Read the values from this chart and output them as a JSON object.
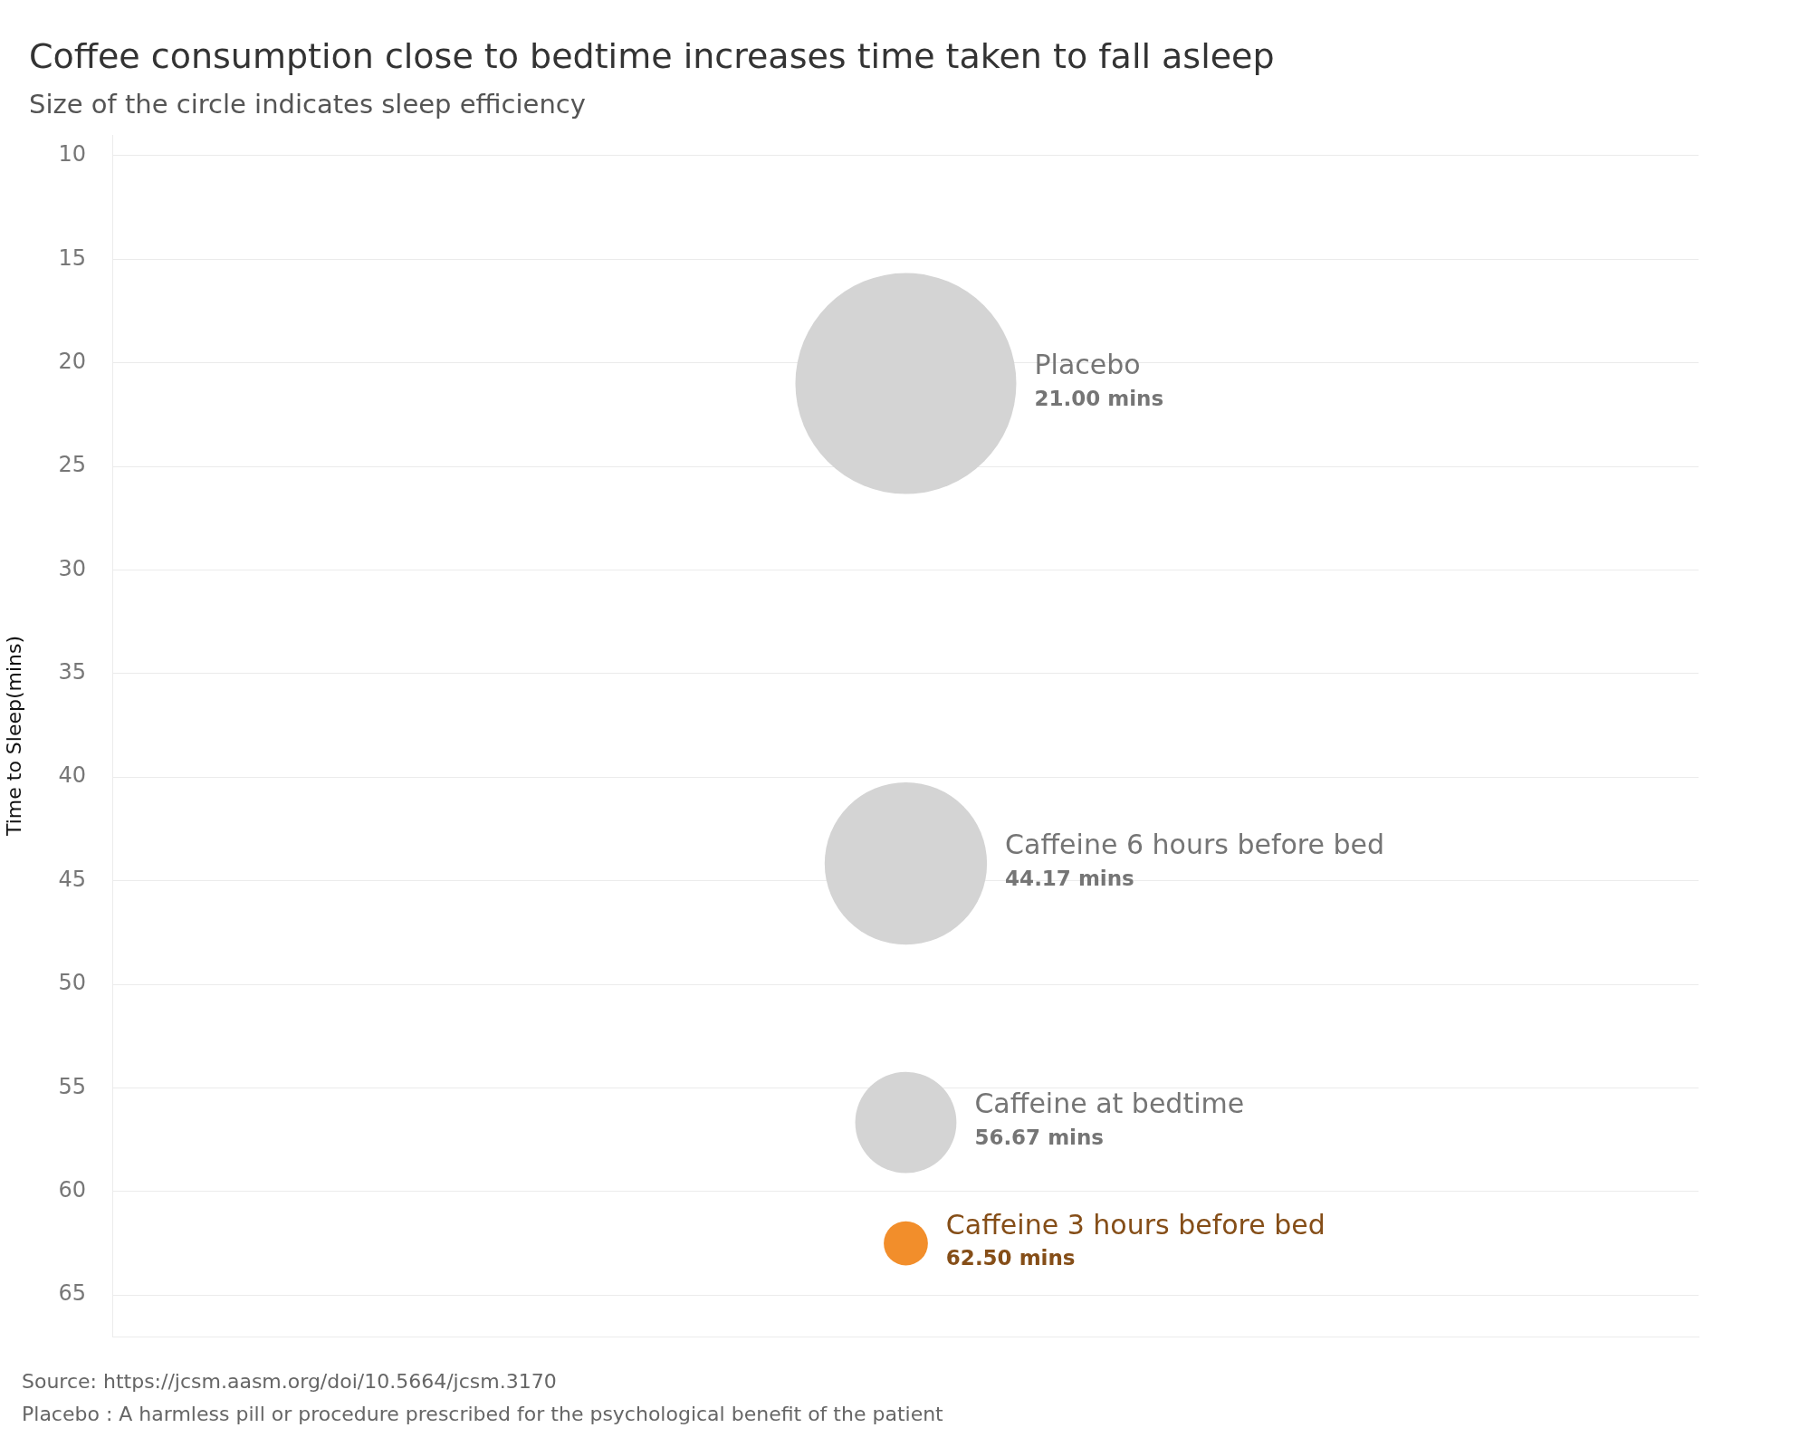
{
  "chart_data": {
    "type": "bubble",
    "title": "Coffee consumption close to bedtime increases time taken to fall asleep",
    "subtitle": "Size of the circle indicates sleep efficiency",
    "ylabel": "Time to Sleep(mins)",
    "categories": [
      null
    ],
    "series": [
      {
        "name": "Placebo",
        "color": "#d4d4d4",
        "values": [
          21.0
        ],
        "sizes": [
          1
        ],
        "value_labels": [
          "21.00 mins"
        ]
      },
      {
        "name": "Caffeine 6 hours before bed",
        "color": "#d4d4d4",
        "values": [
          44.17
        ],
        "sizes": [
          0.54
        ],
        "value_labels": [
          "44.17 mins"
        ]
      },
      {
        "name": "Caffeine at bedtime",
        "color": "#d4d4d4",
        "values": [
          56.67
        ],
        "sizes": [
          0.21
        ],
        "value_labels": [
          "56.67 mins"
        ]
      },
      {
        "name": "Caffeine 3 hours before bed",
        "color": "#f28e2b",
        "values": [
          62.5
        ],
        "sizes": [
          0.04
        ],
        "value_labels": [
          "62.50 mins"
        ]
      }
    ],
    "ylim": [
      67,
      9
    ],
    "yticks": [
      10,
      15,
      20,
      25,
      30,
      35,
      40,
      45,
      50,
      55,
      60,
      65
    ],
    "grid": "y",
    "tick_labels": "y",
    "annotations": [
      "Source: https://jcsm.aasm.org/doi/10.5664/jcsm.3170",
      "Placebo : A harmless pill or procedure prescribed for the psychological benefit of the patient"
    ]
  }
}
